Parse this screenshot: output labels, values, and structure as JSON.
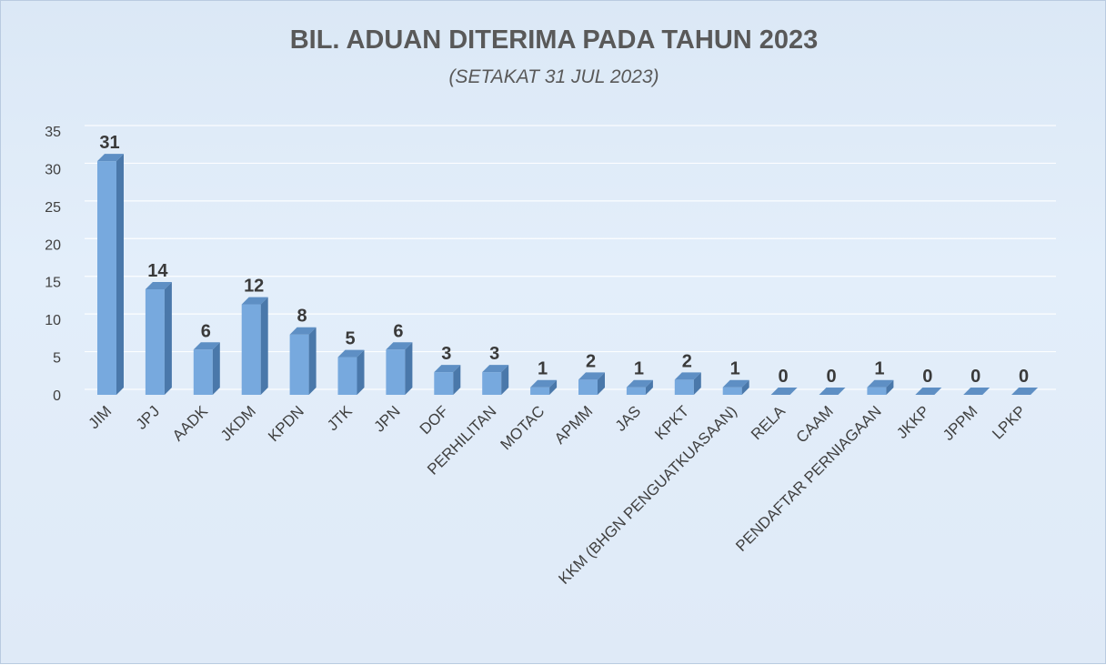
{
  "chart_data": {
    "type": "bar",
    "title": "BIL. ADUAN DITERIMA PADA TAHUN 2023",
    "subtitle": "(SETAKAT 31 JUL 2023)",
    "categories": [
      "JIM",
      "JPJ",
      "AADK",
      "JKDM",
      "KPDN",
      "JTK",
      "JPN",
      "DOF",
      "PERHILITAN",
      "MOTAC",
      "APMM",
      "JAS",
      "KPKT",
      "KKM (BHGN PENGUATKUASAAN)",
      "RELA",
      "CAAM",
      "PENDAFTAR PERNIAGAAN",
      "JKKP",
      "JPPM",
      "LPKP"
    ],
    "values": [
      31,
      14,
      6,
      12,
      8,
      5,
      6,
      3,
      3,
      1,
      2,
      1,
      2,
      1,
      0,
      0,
      1,
      0,
      0,
      0
    ],
    "ylim": [
      0,
      35
    ],
    "yticks": [
      0,
      5,
      10,
      15,
      20,
      25,
      30,
      35
    ],
    "grid": true,
    "legend": "none",
    "colors": {
      "bar_front": "#77a9de",
      "bar_side": "#4a78aa",
      "bar_top": "#5e8fc4",
      "grid": "#ffffff",
      "title": "#595959",
      "label": "#404040",
      "value": "#3a3a3a"
    }
  }
}
